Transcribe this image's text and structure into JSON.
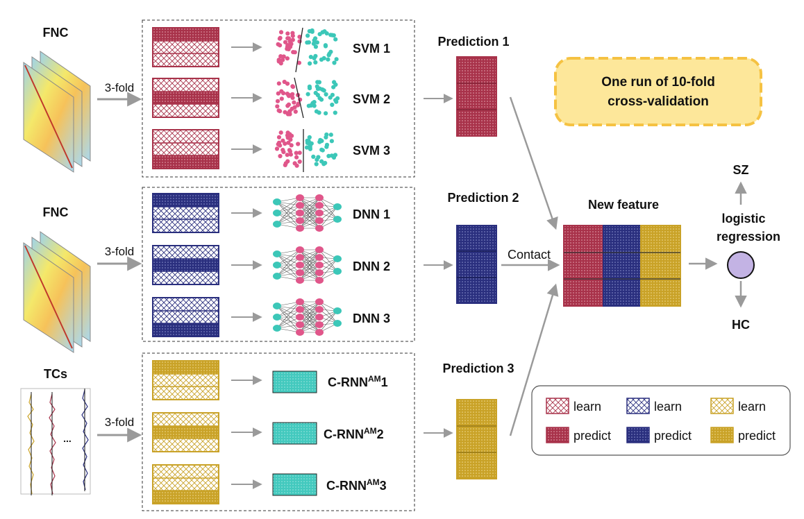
{
  "colors": {
    "svm": "#a8324a",
    "dnn": "#2a2f7e",
    "rnn": "#c9a227",
    "rnn_block": "#43c9be",
    "pink_point": "#e0568a",
    "teal_point": "#3cc7b8",
    "arrow": "#9a9a9a",
    "callout_fill": "#fde79a",
    "callout_border": "#f5c242",
    "lr_node": "#c3b3e4"
  },
  "rows": [
    {
      "input_label": "FNC",
      "fold_label": "3-fold",
      "classifiers": [
        "SVM 1",
        "SVM 2",
        "SVM 3"
      ],
      "prediction_label": "Prediction 1"
    },
    {
      "input_label": "FNC",
      "fold_label": "3-fold",
      "classifiers": [
        "DNN 1",
        "DNN 2",
        "DNN 3"
      ],
      "prediction_label": "Prediction 2"
    },
    {
      "input_label": "TCs",
      "fold_label": "3-fold",
      "classifiers": [
        {
          "base": "C-RNN",
          "sup": "AM",
          "idx": "1"
        },
        {
          "base": "C-RNN",
          "sup": "AM",
          "idx": "2"
        },
        {
          "base": "C-RNN",
          "sup": "AM",
          "idx": "3"
        }
      ],
      "prediction_label": "Prediction 3",
      "ellipsis": "..."
    }
  ],
  "callout": {
    "line1": "One run of 10-fold",
    "line2": "cross-validation"
  },
  "contact_label": "Contact",
  "new_feature_label": "New feature",
  "lr": {
    "line1": "logistic",
    "line2": "regression",
    "top": "SZ",
    "bottom": "HC"
  },
  "legend": {
    "learn": "learn",
    "predict": "predict"
  }
}
